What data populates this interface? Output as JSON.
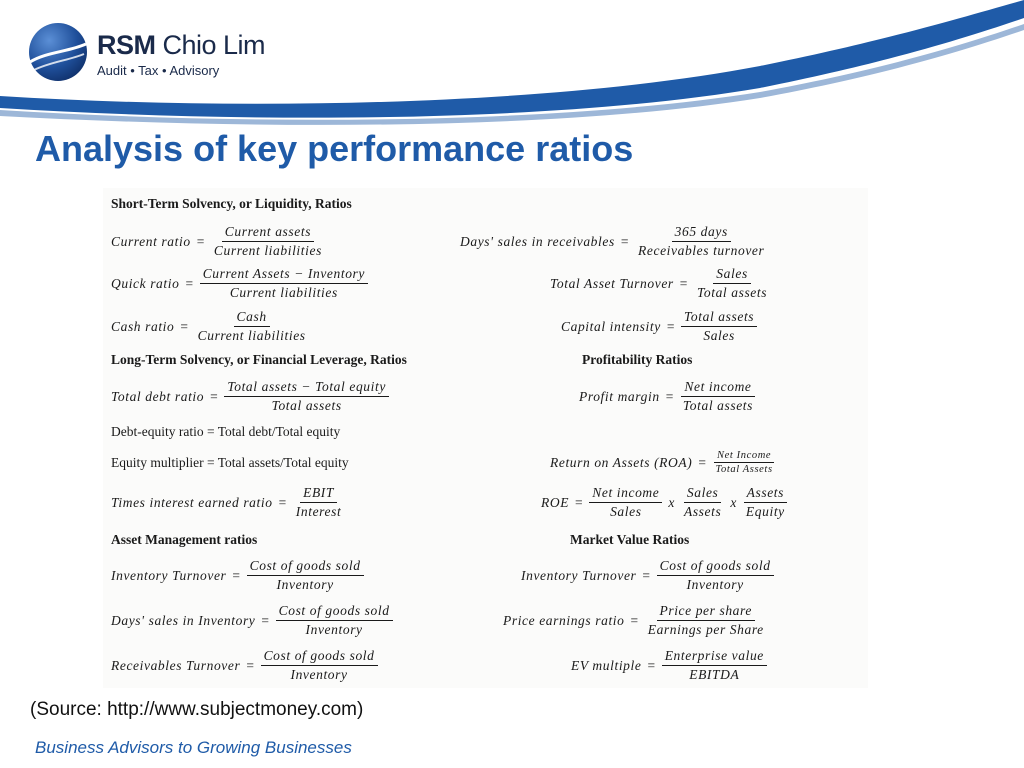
{
  "brand": {
    "name_bold": "RSM",
    "name_regular": " Chio Lim",
    "tagline": "Audit • Tax • Advisory",
    "primary_color": "#1f5ba8",
    "navy_color": "#1a2a4a"
  },
  "title": "Analysis of key performance ratios",
  "sections": {
    "liquidity": "Short-Term Solvency, or Liquidity, Ratios",
    "leverage": "Long-Term Solvency, or Financial Leverage, Ratios",
    "profitability": "Profitability Ratios",
    "asset_mgmt": "Asset Management ratios",
    "market_value": "Market Value Ratios"
  },
  "formulas": {
    "current_ratio": {
      "label": "Current ratio",
      "num": "Current assets",
      "den": "Current liabilities"
    },
    "days_sales_receivables": {
      "label": "Days' sales in receivables",
      "num": "365 days",
      "den": "Receivables turnover"
    },
    "quick_ratio": {
      "label": "Quick ratio",
      "num": "Current Assets − Inventory",
      "den": "Current liabilities"
    },
    "total_asset_turnover": {
      "label": "Total Asset Turnover",
      "num": "Sales",
      "den": "Total assets"
    },
    "cash_ratio": {
      "label": "Cash ratio",
      "num": "Cash",
      "den": "Current liabilities"
    },
    "capital_intensity": {
      "label": "Capital intensity",
      "num": "Total assets",
      "den": "Sales"
    },
    "total_debt_ratio": {
      "label": "Total debt ratio",
      "num": "Total assets − Total equity",
      "den": "Total assets"
    },
    "profit_margin": {
      "label": "Profit margin",
      "num": "Net income",
      "den": "Total assets"
    },
    "debt_equity": "Debt-equity ratio = Total debt/Total equity",
    "equity_multiplier": "Equity multiplier = Total assets/Total equity",
    "roa": {
      "label": "Return on Assets (ROA)",
      "num": "Net Income",
      "den": "Total Assets"
    },
    "times_interest": {
      "label": "Times interest earned ratio",
      "num": "EBIT",
      "den": "Interest"
    },
    "roe": {
      "label": "ROE",
      "f1_num": "Net income",
      "f1_den": "Sales",
      "f2_num": "Sales",
      "f2_den": "Assets",
      "f3_num": "Assets",
      "f3_den": "Equity",
      "times": "x"
    },
    "inventory_turnover_left": {
      "label": "Inventory Turnover",
      "num": "Cost of goods sold",
      "den": "Inventory"
    },
    "inventory_turnover_right": {
      "label": "Inventory Turnover",
      "num": "Cost of goods sold",
      "den": "Inventory"
    },
    "days_sales_inventory": {
      "label": "Days' sales in Inventory",
      "num": "Cost of goods sold",
      "den": "Inventory"
    },
    "price_earnings": {
      "label": "Price earnings ratio",
      "num": "Price per share",
      "den": "Earnings per Share"
    },
    "receivables_turnover": {
      "label": "Receivables Turnover",
      "num": "Cost of goods sold",
      "den": "Inventory"
    },
    "ev_multiple": {
      "label": "EV multiple",
      "num": "Enterprise value",
      "den": "EBITDA"
    }
  },
  "equals": "=",
  "source": "(Source: http://www.subjectmoney.com)",
  "footer": "Business Advisors to Growing Businesses"
}
